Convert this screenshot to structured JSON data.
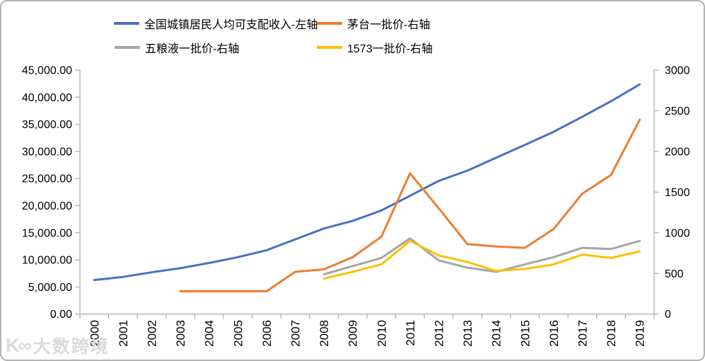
{
  "legend": [
    {
      "label": "全国城镇居民人均可支配收入-左轴",
      "color": "#4472C4"
    },
    {
      "label": "茅台一批价-右轴",
      "color": "#ED7D31"
    },
    {
      "label": "五粮液一批价-右轴",
      "color": "#A5A5A5"
    },
    {
      "label": "1573一批价-右轴",
      "color": "#FFC000"
    }
  ],
  "watermark": {
    "logo_text": "K∞",
    "text": "大数跨境"
  },
  "chart_data": {
    "type": "line",
    "title": "",
    "xlabel": "",
    "ylabel_left": "",
    "ylabel_right": "",
    "grid": false,
    "legend_position": "top",
    "categories": [
      "2000",
      "2001",
      "2002",
      "2003",
      "2004",
      "2005",
      "2006",
      "2007",
      "2008",
      "2009",
      "2010",
      "2011",
      "2012",
      "2013",
      "2014",
      "2015",
      "2016",
      "2017",
      "2018",
      "2019"
    ],
    "left_axis": {
      "min": 0,
      "max": 45000,
      "step": 5000,
      "tick_labels": [
        "45,000.00",
        "40,000.00",
        "35,000.00",
        "30,000.00",
        "25,000.00",
        "20,000.00",
        "15,000.00",
        "10,000.00",
        "5,000.00",
        "0.00"
      ]
    },
    "right_axis": {
      "min": 0,
      "max": 3000,
      "step": 500,
      "tick_labels": [
        "3000",
        "2500",
        "2000",
        "1500",
        "1000",
        "500",
        "0"
      ]
    },
    "series": [
      {
        "name": "全国城镇居民人均可支配收入-左轴",
        "axis": "left",
        "color": "#4472C4",
        "values": [
          6280,
          6860,
          7703,
          8472,
          9422,
          10493,
          11759,
          13786,
          15781,
          17175,
          19109,
          21810,
          24565,
          26467,
          28844,
          31195,
          33616,
          36396,
          39251,
          42359
        ]
      },
      {
        "name": "茅台一批价-右轴",
        "axis": "right",
        "color": "#ED7D31",
        "values": [
          null,
          null,
          null,
          280,
          280,
          280,
          280,
          520,
          550,
          700,
          950,
          1730,
          1300,
          860,
          830,
          815,
          1045,
          1480,
          1710,
          2390
        ]
      },
      {
        "name": "五粮液一批价-右轴",
        "axis": "right",
        "color": "#A5A5A5",
        "values": [
          null,
          null,
          null,
          null,
          null,
          null,
          null,
          null,
          490,
          590,
          690,
          930,
          660,
          570,
          520,
          610,
          700,
          815,
          800,
          900
        ]
      },
      {
        "name": "1573一批价-右轴",
        "axis": "right",
        "color": "#FFC000",
        "values": [
          null,
          null,
          null,
          null,
          null,
          null,
          null,
          null,
          435,
          520,
          610,
          900,
          720,
          640,
          530,
          555,
          610,
          730,
          690,
          770
        ]
      }
    ]
  }
}
